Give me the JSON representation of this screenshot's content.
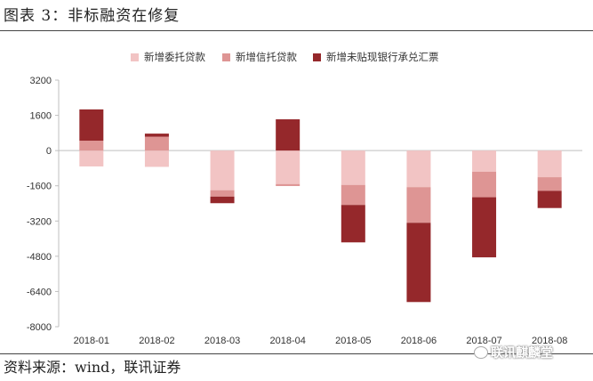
{
  "header": {
    "figure_title": "图表 3：非标融资在修复"
  },
  "footer": {
    "source_label": "资料来源：",
    "source_text": "wind，联讯证券"
  },
  "watermark": {
    "text": "联讯麒麟堂"
  },
  "chart_data": {
    "type": "bar",
    "stacked": true,
    "title": "",
    "xlabel": "",
    "ylabel": "",
    "categories": [
      "2018-01",
      "2018-02",
      "2018-03",
      "2018-04",
      "2018-05",
      "2018-06",
      "2018-07",
      "2018-08"
    ],
    "ylim": [
      -8000,
      3200
    ],
    "yticks": [
      3200,
      1600,
      0,
      -1600,
      -3200,
      -4800,
      -6400,
      -8000
    ],
    "grid": false,
    "legend_position": "top",
    "series": [
      {
        "name": "新增委托贷款",
        "color": "#f2c4c4",
        "values": [
          -720,
          -740,
          -1800,
          -1520,
          -1560,
          -1660,
          -960,
          -1210
        ]
      },
      {
        "name": "新增信托贷款",
        "color": "#de9594",
        "values": [
          450,
          630,
          -290,
          -90,
          -910,
          -1620,
          -1160,
          -620
        ]
      },
      {
        "name": "新增未贴现银行承兑汇票",
        "color": "#95282b",
        "values": [
          1420,
          140,
          -300,
          1420,
          -1700,
          -3600,
          -2730,
          -780
        ]
      }
    ]
  }
}
